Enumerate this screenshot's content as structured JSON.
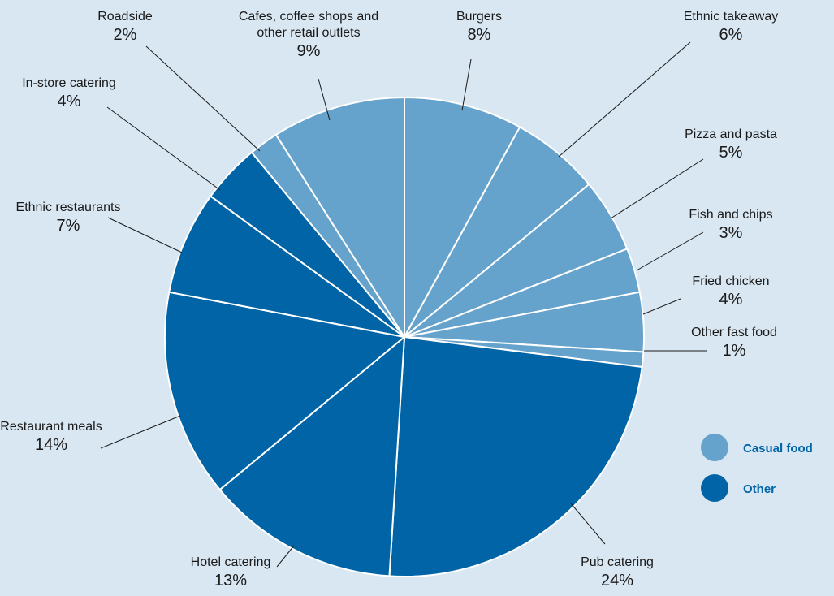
{
  "chart_data": {
    "type": "pie",
    "title": "",
    "slices": [
      {
        "label": "Burgers",
        "value": 8,
        "value_label": "8%",
        "group": "casual"
      },
      {
        "label": "Ethnic takeaway",
        "value": 6,
        "value_label": "6%",
        "group": "casual"
      },
      {
        "label": "Pizza and pasta",
        "value": 5,
        "value_label": "5%",
        "group": "casual"
      },
      {
        "label": "Fish and chips",
        "value": 3,
        "value_label": "3%",
        "group": "casual"
      },
      {
        "label": "Fried chicken",
        "value": 4,
        "value_label": "4%",
        "group": "casual"
      },
      {
        "label": "Other fast food",
        "value": 1,
        "value_label": "1%",
        "group": "casual"
      },
      {
        "label": "Pub catering",
        "value": 24,
        "value_label": "24%",
        "group": "other"
      },
      {
        "label": "Hotel catering",
        "value": 13,
        "value_label": "13%",
        "group": "other"
      },
      {
        "label": "Restaurant meals",
        "value": 14,
        "value_label": "14%",
        "group": "other"
      },
      {
        "label": "Ethnic restaurants",
        "value": 7,
        "value_label": "7%",
        "group": "other"
      },
      {
        "label": "In-store catering",
        "value": 4,
        "value_label": "4%",
        "group": "other"
      },
      {
        "label": "Roadside",
        "value": 2,
        "value_label": "2%",
        "group": "casual"
      },
      {
        "label": "Cafes, coffee shops and\nother retail outlets",
        "value": 9,
        "value_label": "9%",
        "group": "casual"
      }
    ],
    "legend": [
      {
        "key": "casual",
        "label": "Casual food",
        "color": "#66a3cc"
      },
      {
        "key": "other",
        "label": "Other",
        "color": "#0064a6"
      }
    ],
    "legend_position": "right"
  },
  "colors": {
    "background": "#d9e7f2",
    "casual": "#66a3cc",
    "other": "#0064a6",
    "slice_border": "#ffffff",
    "legend_text": "#0064a6"
  }
}
